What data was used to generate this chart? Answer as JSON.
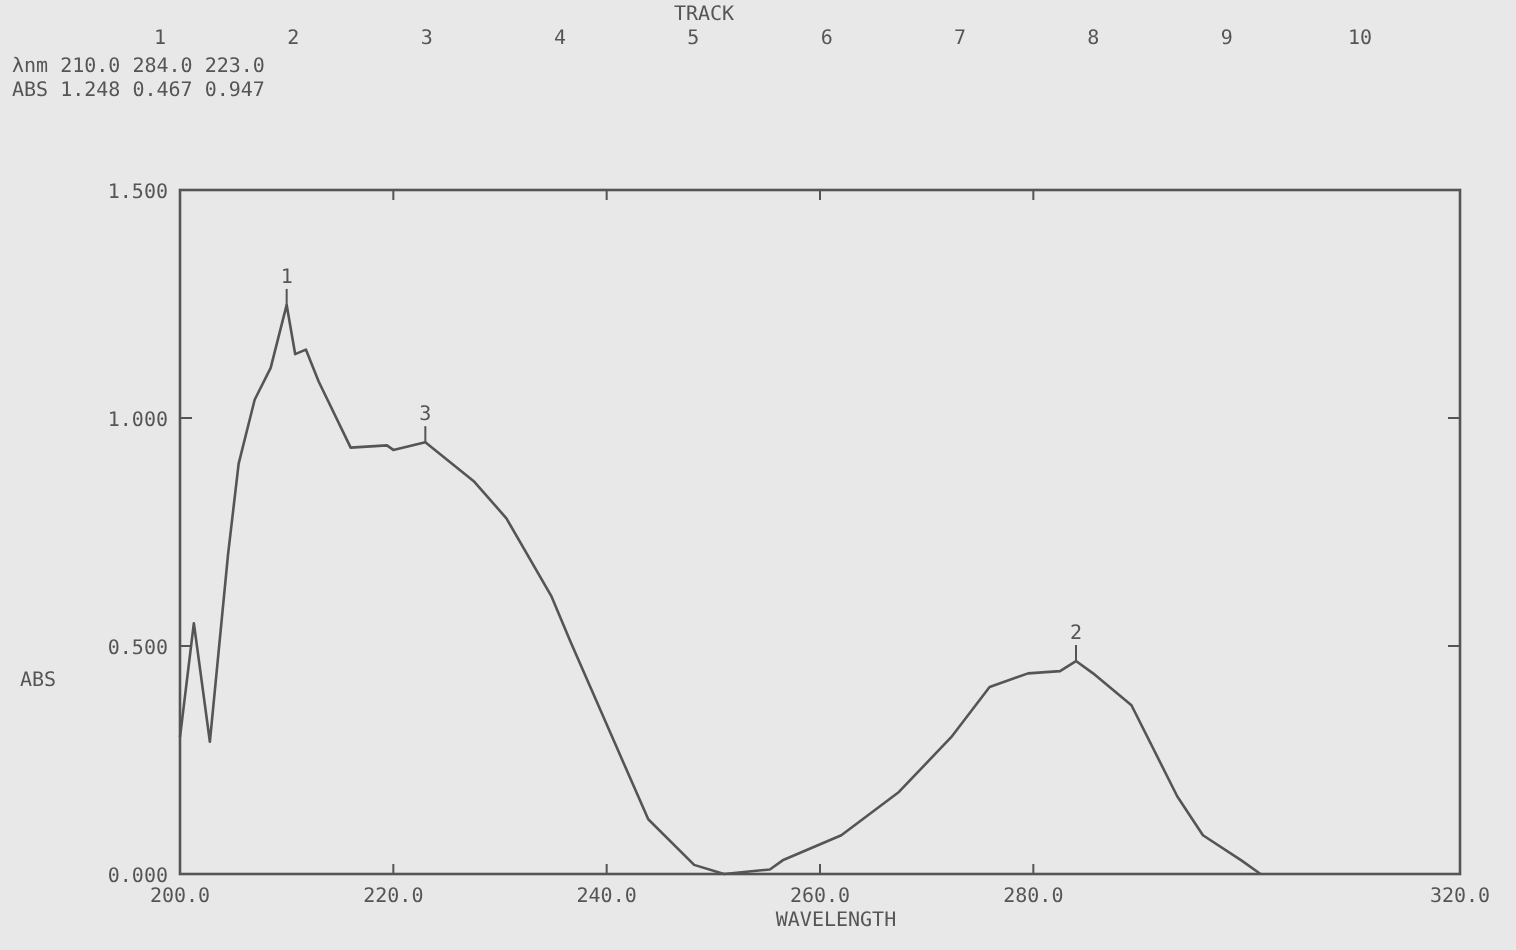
{
  "chart_data": {
    "type": "line",
    "xlabel": "WAVELENGTH",
    "ylabel": "ABS",
    "x2label": "TRACK",
    "xlim": [
      200,
      320
    ],
    "ylim": [
      0,
      1.5
    ],
    "xticks": [
      {
        "value": 200,
        "label": "200.0"
      },
      {
        "value": 220,
        "label": "220.0"
      },
      {
        "value": 240,
        "label": "240.0"
      },
      {
        "value": 260,
        "label": "260.0"
      },
      {
        "value": 280,
        "label": "280.0"
      },
      {
        "value": 320,
        "label": "320.0"
      }
    ],
    "yticks": [
      {
        "value": 0,
        "label": "0.000"
      },
      {
        "value": 0.5,
        "label": "0.500"
      },
      {
        "value": 1,
        "label": "1.000"
      },
      {
        "value": 1.5,
        "label": "1.500"
      }
    ],
    "x2lim": [
      1,
      10
    ],
    "x2ticks": [
      1,
      2,
      3,
      4,
      5,
      6,
      7,
      8,
      9,
      10
    ],
    "grid": false,
    "marker": "none",
    "line_style": "solid",
    "series": [
      {
        "color": "#555555",
        "x": [
          200,
          201.3,
          202.8,
          204.5,
          205.5,
          207,
          208.5,
          210,
          210.8,
          211.8,
          213,
          216,
          219.4,
          220,
          223,
          227.6,
          230.6,
          234.8,
          236.6,
          240.9,
          243.9,
          248.2,
          251,
          255.3,
          256.5,
          262,
          267.4,
          272.3,
          275.9,
          279.5,
          282.5,
          284,
          285.6,
          289.2,
          293.5,
          295.9,
          299.5,
          301.3
        ],
        "values": [
          0.3,
          0.55,
          0.29,
          0.7,
          0.9,
          1.04,
          1.11,
          1.248,
          1.14,
          1.15,
          1.08,
          0.935,
          0.94,
          0.93,
          0.947,
          0.86,
          0.78,
          0.61,
          0.51,
          0.28,
          0.12,
          0.02,
          0,
          0.01,
          0.03,
          0.085,
          0.18,
          0.3,
          0.41,
          0.44,
          0.445,
          0.467,
          0.44,
          0.37,
          0.17,
          0.085,
          0.03,
          0
        ]
      }
    ],
    "annotations": [
      "λnm 210.0 284.0 223.0",
      "ABS 1.248 0.467 0.947",
      {
        "text": "1",
        "x": 210,
        "y": 1.248
      },
      {
        "text": "2",
        "x": 284,
        "y": 0.467
      },
      {
        "text": "3",
        "x": 223,
        "y": 0.947
      }
    ]
  }
}
